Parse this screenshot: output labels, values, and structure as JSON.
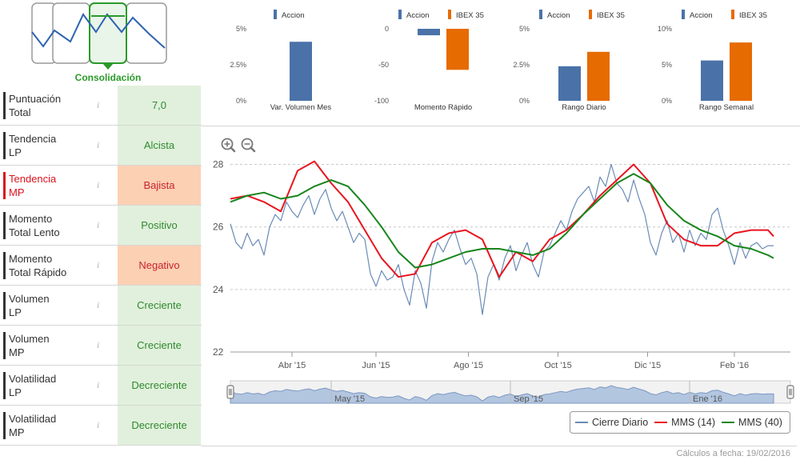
{
  "logo": {
    "label": "Consolidación"
  },
  "metrics": [
    {
      "label_l1": "Puntuación",
      "label_l2": "Total",
      "value": "7,0",
      "tone": "green",
      "highlight": false
    },
    {
      "label_l1": "Tendencia",
      "label_l2": "LP",
      "value": "Alcista",
      "tone": "green",
      "highlight": false
    },
    {
      "label_l1": "Tendencia",
      "label_l2": "MP",
      "value": "Bajista",
      "tone": "orange",
      "highlight": true
    },
    {
      "label_l1": "Momento",
      "label_l2": "Total Lento",
      "value": "Positivo",
      "tone": "green",
      "highlight": false
    },
    {
      "label_l1": "Momento",
      "label_l2": "Total Rápido",
      "value": "Negativo",
      "tone": "orange",
      "highlight": false
    },
    {
      "label_l1": "Volumen",
      "label_l2": "LP",
      "value": "Creciente",
      "tone": "green",
      "highlight": false
    },
    {
      "label_l1": "Volumen",
      "label_l2": "MP",
      "value": "Creciente",
      "tone": "green",
      "highlight": false
    },
    {
      "label_l1": "Volatilidad",
      "label_l2": "LP",
      "value": "Decreciente",
      "tone": "green",
      "highlight": false
    },
    {
      "label_l1": "Volatilidad",
      "label_l2": "MP",
      "value": "Decreciente",
      "tone": "green",
      "highlight": false
    }
  ],
  "info_glyph": "i",
  "colors": {
    "accion": "#4a72a8",
    "ibex": "#e66b00",
    "price": "#6a8bb5",
    "mms14": "#e8151f",
    "mms40": "#17851b",
    "green_text": "#2f8a2f",
    "brand_green": "#2a9a2a"
  },
  "chart_data": [
    {
      "type": "bar",
      "title": "Var. Volumen Mes",
      "legend": [
        "Accion"
      ],
      "yticks": [
        "5%",
        "2.5%",
        "0%"
      ],
      "ylim": [
        0,
        5
      ],
      "series": [
        {
          "name": "Accion",
          "values": [
            4.1
          ]
        }
      ]
    },
    {
      "type": "bar",
      "title": "Momento Rápido",
      "legend": [
        "Accion",
        "IBEX 35"
      ],
      "yticks": [
        "0",
        "-50",
        "-100"
      ],
      "ylim": [
        -100,
        0
      ],
      "series": [
        {
          "name": "Accion",
          "values": [
            -9
          ]
        },
        {
          "name": "IBEX 35",
          "values": [
            -57
          ]
        }
      ]
    },
    {
      "type": "bar",
      "title": "Rango Diario",
      "legend": [
        "Accion",
        "IBEX 35"
      ],
      "yticks": [
        "5%",
        "2.5%",
        "0%"
      ],
      "ylim": [
        0,
        5
      ],
      "series": [
        {
          "name": "Accion",
          "values": [
            2.4
          ]
        },
        {
          "name": "IBEX 35",
          "values": [
            3.4
          ]
        }
      ]
    },
    {
      "type": "bar",
      "title": "Rango Semanal",
      "legend": [
        "Accion",
        "IBEX 35"
      ],
      "yticks": [
        "10%",
        "5%",
        "0%"
      ],
      "ylim": [
        0,
        10
      ],
      "series": [
        {
          "name": "Accion",
          "values": [
            5.6
          ]
        },
        {
          "name": "IBEX 35",
          "values": [
            8.1
          ]
        }
      ]
    },
    {
      "type": "line",
      "yticks": [
        "28",
        "26",
        "24",
        "22"
      ],
      "ylim": [
        22,
        28.5
      ],
      "xlim": [
        0,
        100
      ],
      "xticks": [
        {
          "label": "Abr '15",
          "x": 11
        },
        {
          "label": "Jun '15",
          "x": 26
        },
        {
          "label": "Ago '15",
          "x": 42.5
        },
        {
          "label": "Oct '15",
          "x": 58.5
        },
        {
          "label": "Dic '15",
          "x": 74.5
        },
        {
          "label": "Feb '16",
          "x": 90
        }
      ],
      "navigator_labels": [
        {
          "label": "May '15",
          "x": 18
        },
        {
          "label": "Sep '15",
          "x": 50
        },
        {
          "label": "Ene '16",
          "x": 82
        }
      ],
      "series": [
        {
          "name": "Cierre Diario",
          "x": [
            0,
            1,
            2,
            3,
            4,
            5,
            6,
            7,
            8,
            9,
            10,
            11,
            12,
            13,
            14,
            15,
            16,
            17,
            18,
            19,
            20,
            21,
            22,
            23,
            24,
            25,
            26,
            27,
            28,
            29,
            30,
            31,
            32,
            33,
            34,
            35,
            36,
            37,
            38,
            39,
            40,
            41,
            42,
            43,
            44,
            45,
            46,
            47,
            48,
            49,
            50,
            51,
            52,
            53,
            54,
            55,
            56,
            57,
            58,
            59,
            60,
            61,
            62,
            63,
            64,
            65,
            66,
            67,
            68,
            69,
            70,
            71,
            72,
            73,
            74,
            75,
            76,
            77,
            78,
            79,
            80,
            81,
            82,
            83,
            84,
            85,
            86,
            87,
            88,
            89,
            90,
            91,
            92,
            93,
            94,
            95,
            96,
            97
          ],
          "values": [
            26.1,
            25.5,
            25.3,
            25.8,
            25.4,
            25.6,
            25.1,
            26.0,
            26.4,
            26.2,
            26.8,
            26.5,
            26.3,
            26.7,
            27.0,
            26.4,
            26.9,
            27.2,
            26.6,
            26.2,
            26.5,
            26.0,
            25.5,
            25.8,
            25.6,
            24.5,
            24.1,
            24.6,
            24.3,
            24.4,
            24.8,
            24.0,
            23.5,
            24.6,
            24.2,
            23.4,
            24.9,
            25.5,
            25.2,
            25.6,
            25.9,
            25.3,
            24.8,
            25.0,
            24.5,
            23.2,
            24.4,
            24.8,
            24.3,
            25.0,
            25.4,
            24.6,
            25.1,
            25.5,
            24.8,
            24.4,
            25.2,
            25.4,
            25.8,
            26.2,
            25.9,
            26.5,
            26.9,
            27.1,
            27.3,
            26.8,
            27.6,
            27.3,
            28.0,
            27.4,
            27.2,
            26.8,
            27.5,
            26.9,
            26.4,
            25.5,
            25.1,
            25.8,
            26.2,
            25.5,
            25.8,
            25.2,
            25.9,
            25.4,
            25.8,
            25.6,
            26.4,
            26.6,
            25.9,
            25.4,
            24.8,
            25.5,
            25.0,
            25.4,
            25.5,
            25.3,
            25.4,
            25.4
          ]
        },
        {
          "name": "MMS (14)",
          "x": [
            0,
            3,
            6,
            9,
            12,
            15,
            18,
            21,
            24,
            27,
            30,
            33,
            36,
            39,
            42,
            45,
            48,
            51,
            54,
            57,
            60,
            63,
            66,
            69,
            72,
            75,
            78,
            81,
            84,
            87,
            90,
            93,
            96,
            97
          ],
          "values": [
            26.9,
            27.0,
            26.8,
            26.5,
            27.8,
            28.1,
            27.4,
            26.8,
            25.9,
            25.0,
            24.4,
            24.5,
            25.5,
            25.8,
            25.9,
            25.6,
            24.4,
            25.2,
            24.9,
            25.6,
            25.9,
            26.4,
            27.0,
            27.5,
            28.0,
            27.4,
            26.1,
            25.6,
            25.4,
            25.4,
            25.8,
            25.9,
            25.9,
            25.7
          ]
        },
        {
          "name": "MMS (40)",
          "x": [
            0,
            3,
            6,
            9,
            12,
            15,
            18,
            21,
            24,
            27,
            30,
            33,
            36,
            39,
            42,
            45,
            48,
            51,
            54,
            57,
            60,
            63,
            66,
            69,
            72,
            75,
            78,
            81,
            84,
            87,
            90,
            93,
            96,
            97
          ],
          "values": [
            26.8,
            27.0,
            27.1,
            26.9,
            27.0,
            27.3,
            27.5,
            27.3,
            26.7,
            26.0,
            25.2,
            24.7,
            24.8,
            25.0,
            25.2,
            25.3,
            25.3,
            25.2,
            25.1,
            25.3,
            25.8,
            26.4,
            26.9,
            27.4,
            27.7,
            27.4,
            26.7,
            26.2,
            25.9,
            25.7,
            25.4,
            25.3,
            25.1,
            25.0
          ]
        }
      ]
    }
  ],
  "legend": [
    {
      "label": "Cierre Diario",
      "color_key": "price"
    },
    {
      "label": "MMS (14)",
      "color_key": "mms14"
    },
    {
      "label": "MMS (40)",
      "color_key": "mms40"
    }
  ],
  "footer": {
    "text": "Cálculos a fecha: 19/02/2016"
  }
}
